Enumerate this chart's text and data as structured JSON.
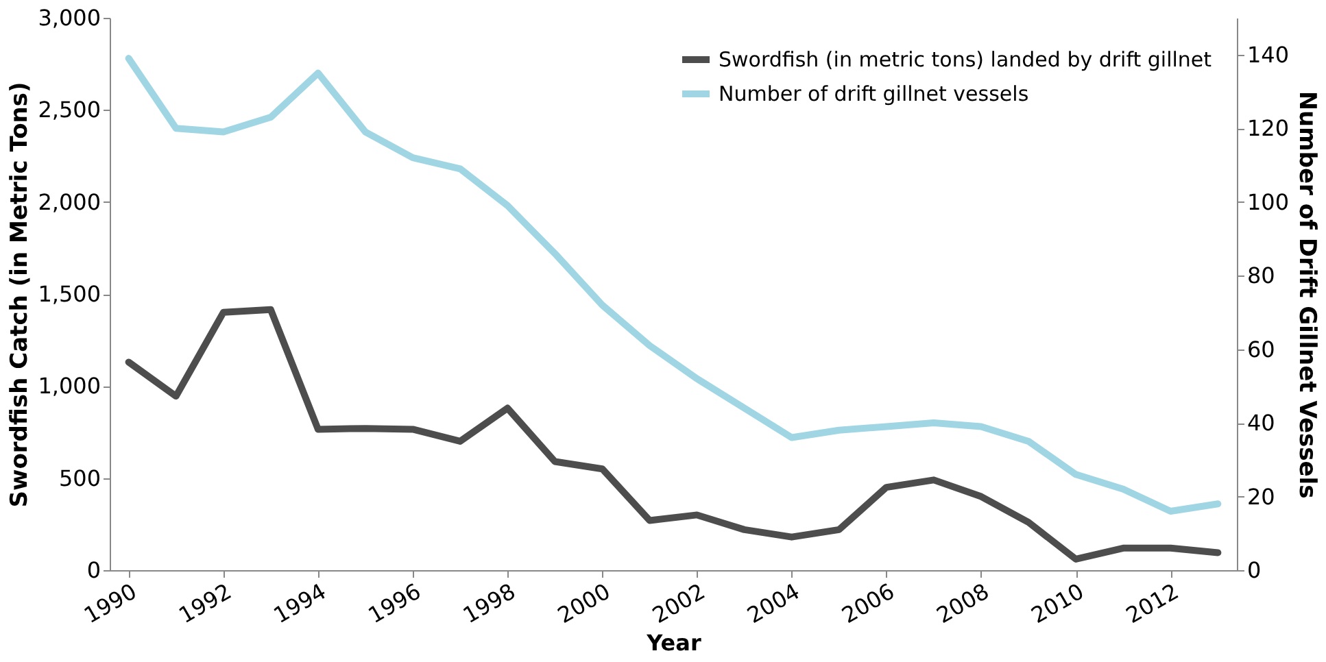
{
  "chart_data": {
    "type": "line",
    "xlabel": "Year",
    "ylabel": "Swordfish Catch (in Metric Tons)",
    "y2label": "Number of Drift Gillnet Vessels",
    "x": [
      1990,
      1991,
      1992,
      1993,
      1994,
      1995,
      1996,
      1997,
      1998,
      1999,
      2000,
      2001,
      2002,
      2003,
      2004,
      2005,
      2006,
      2007,
      2008,
      2009,
      2010,
      2011,
      2012,
      2013
    ],
    "series": [
      {
        "name": "Swordfish (in metric tons) landed by drift gillnet",
        "color": "#4d4d4d",
        "values": [
          1130,
          945,
          1400,
          1415,
          765,
          770,
          765,
          700,
          880,
          590,
          550,
          270,
          300,
          220,
          180,
          220,
          450,
          490,
          400,
          260,
          60,
          120,
          120,
          95
        ]
      },
      {
        "name": "Number of drift gillnet vessels",
        "color": "#a0d6e4",
        "axis": "y2",
        "values": [
          139,
          120,
          119,
          123,
          135,
          119,
          112,
          109,
          99,
          86,
          72,
          61,
          52,
          44,
          36,
          38,
          39,
          40,
          39,
          35,
          26,
          22,
          16,
          18
        ]
      }
    ],
    "xlim": [
      1989.6,
      2013.4
    ],
    "xticks": [
      1990,
      1992,
      1994,
      1996,
      1998,
      2000,
      2002,
      2004,
      2006,
      2008,
      2010,
      2012
    ],
    "ylim": [
      0,
      3000
    ],
    "yticks": [
      0,
      500,
      {
        "value": 1000,
        "label": "1,000"
      },
      {
        "value": 1500,
        "label": "1,500"
      },
      {
        "value": 2000,
        "label": "2,000"
      },
      {
        "value": 2500,
        "label": "2,500"
      },
      {
        "value": 3000,
        "label": "3,000"
      }
    ],
    "y2lim": [
      0,
      150
    ],
    "y2ticks": [
      0,
      20,
      40,
      60,
      80,
      100,
      120,
      140
    ],
    "grid": false,
    "legend": "top right",
    "marker": "none",
    "line_style": "solid"
  }
}
